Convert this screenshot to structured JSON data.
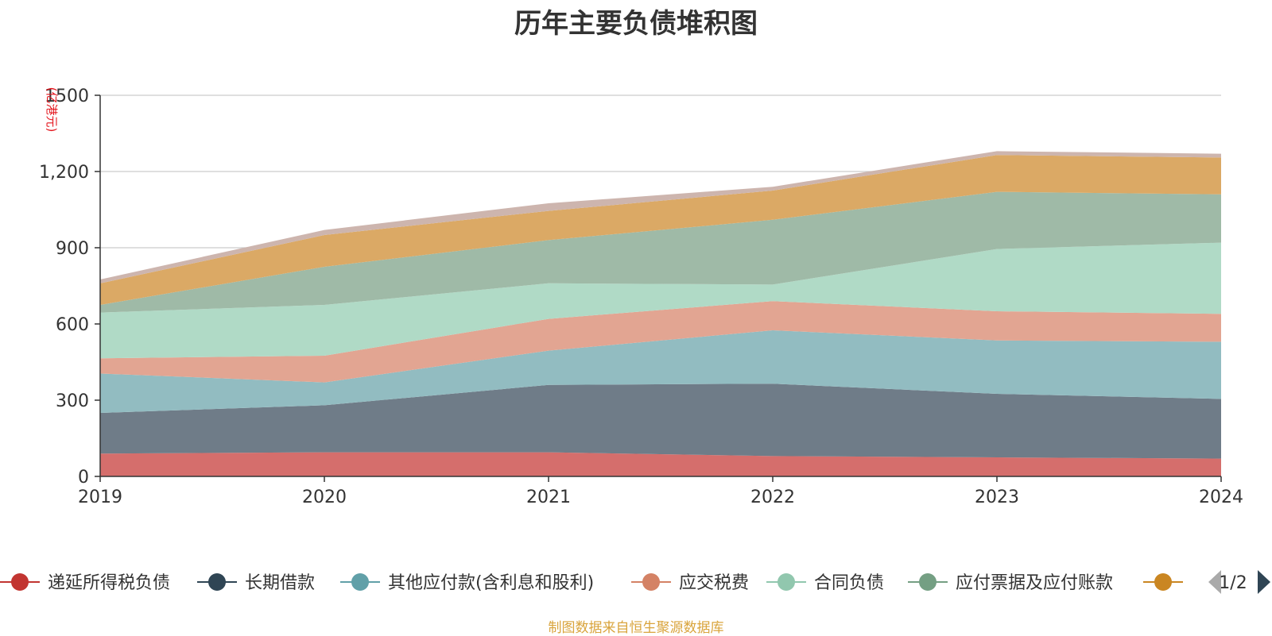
{
  "chart_data": {
    "type": "area",
    "title": "历年主要负债堆积图",
    "y_unit_label": "(亿港元)",
    "x": [
      "2019",
      "2020",
      "2021",
      "2022",
      "2023",
      "2024"
    ],
    "ylim": [
      0,
      1500
    ],
    "yticks": [
      "0",
      "300",
      "600",
      "900",
      "1,200",
      "1500"
    ],
    "ytick_values": [
      0,
      300,
      600,
      900,
      1200,
      1500
    ],
    "grid": true,
    "stacked": true,
    "series": [
      {
        "name": "递延所得税负债",
        "color": "#c23531",
        "fill": "#d56e6c",
        "values": [
          90,
          95,
          95,
          80,
          75,
          70
        ]
      },
      {
        "name": "长期借款",
        "color": "#2f4554",
        "fill": "#6f7c88",
        "values": [
          160,
          185,
          265,
          285,
          250,
          235
        ]
      },
      {
        "name": "其他应付款(含利息和股利)",
        "color": "#61a0a8",
        "fill": "#92bcc1",
        "values": [
          155,
          90,
          135,
          210,
          210,
          225
        ]
      },
      {
        "name": "应交税费",
        "color": "#d48265",
        "fill": "#e2a592",
        "values": [
          60,
          105,
          125,
          115,
          115,
          110
        ]
      },
      {
        "name": "合同负债",
        "color": "#91c7ae",
        "fill": "#b0dac6",
        "values": [
          180,
          200,
          140,
          65,
          245,
          280
        ]
      },
      {
        "name": "应付票据及应付账款",
        "color": "#749f83",
        "fill": "#9fbaa7",
        "values": [
          30,
          150,
          170,
          255,
          225,
          190
        ]
      },
      {
        "name": "",
        "color": "#ca8622",
        "fill": "#dba965",
        "values": [
          85,
          125,
          115,
          115,
          145,
          145
        ]
      },
      {
        "name": "",
        "color": "#bda29a",
        "fill": "#cdb5ae",
        "values": [
          15,
          20,
          30,
          15,
          15,
          15
        ]
      }
    ],
    "legend_placement": "bottom",
    "legend_page": "1/2"
  },
  "source_note": "制图数据来自恒生聚源数据库"
}
